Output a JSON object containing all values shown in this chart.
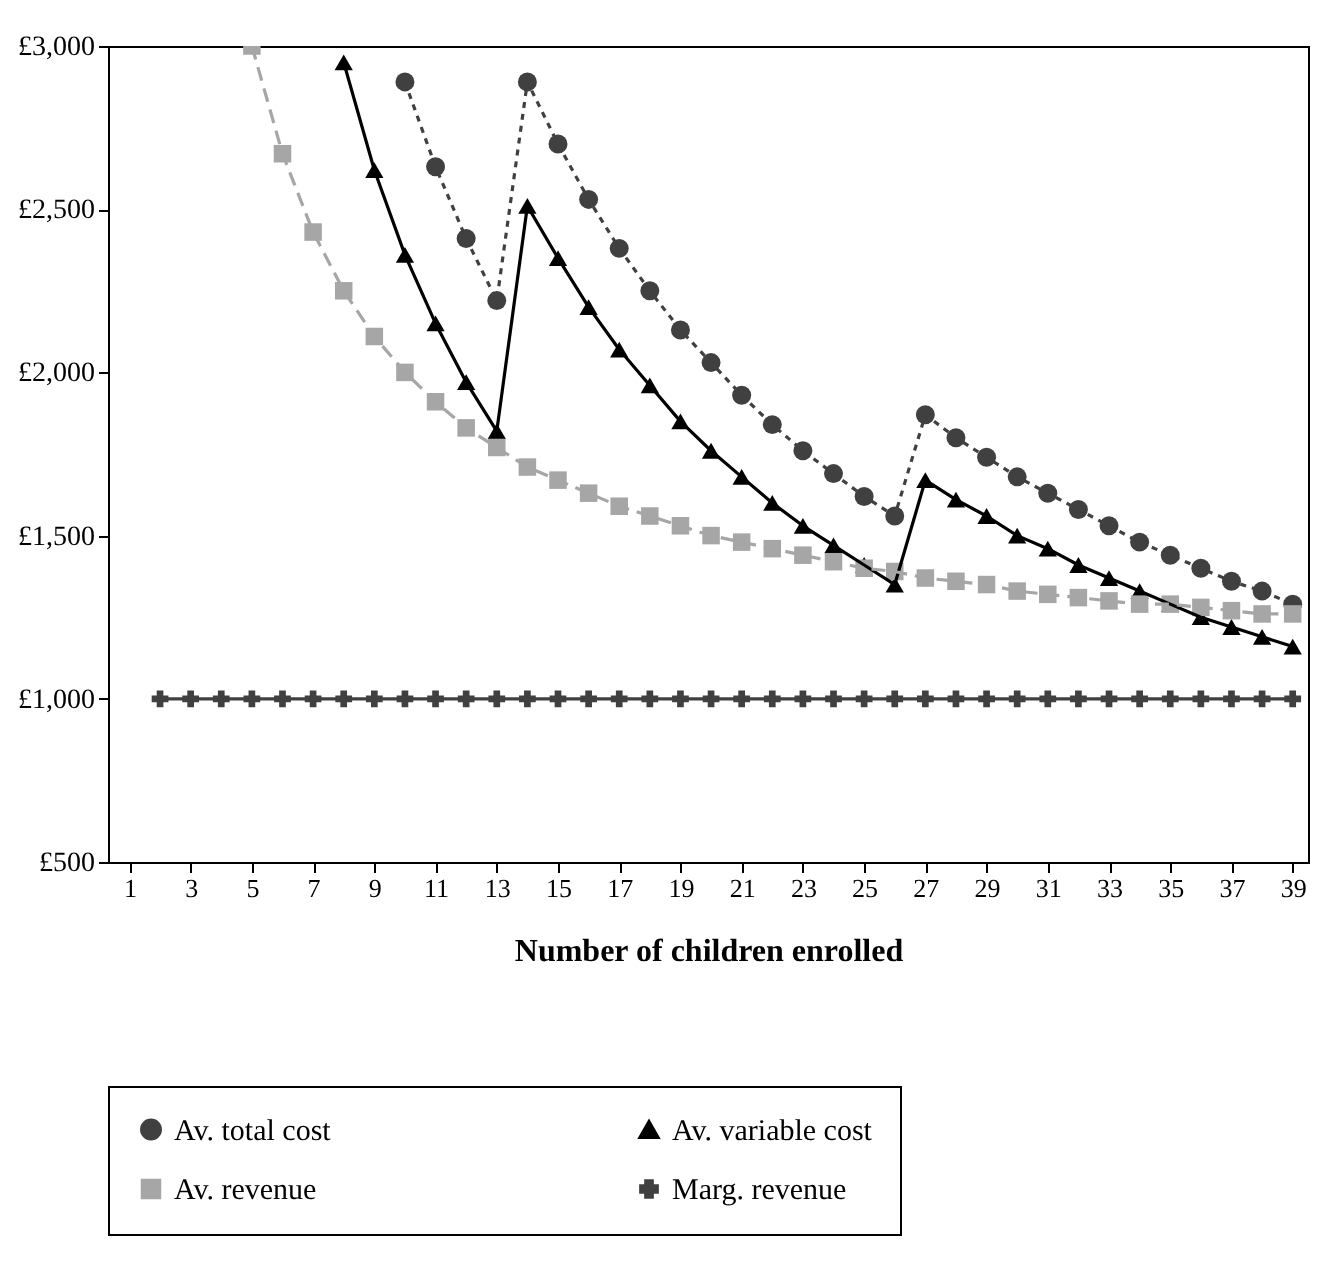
{
  "chart_data": {
    "type": "line",
    "xlabel": "Number of children enrolled",
    "x": [
      2,
      3,
      4,
      5,
      6,
      7,
      8,
      9,
      10,
      11,
      12,
      13,
      14,
      15,
      16,
      17,
      18,
      19,
      20,
      21,
      22,
      23,
      24,
      25,
      26,
      27,
      28,
      29,
      30,
      31,
      32,
      33,
      34,
      35,
      36,
      37,
      38,
      39
    ],
    "xlim": [
      0.3,
      39.5
    ],
    "xticks": [
      1,
      3,
      5,
      7,
      9,
      11,
      13,
      15,
      17,
      19,
      21,
      23,
      25,
      27,
      29,
      31,
      33,
      35,
      37,
      39
    ],
    "ylim": [
      500,
      3000
    ],
    "yticks": [
      {
        "value": 500,
        "label": "£500"
      },
      {
        "value": 1000,
        "label": "£1,000"
      },
      {
        "value": 1500,
        "label": "£1,500"
      },
      {
        "value": 2000,
        "label": "£2,000"
      },
      {
        "value": 2500,
        "label": "£2,500"
      },
      {
        "value": 3000,
        "label": "£3,000"
      }
    ],
    "grid": false,
    "legend": "bottom",
    "series": [
      {
        "name": "Av. total cost",
        "color": "#404040",
        "marker": "circle",
        "line_style": "dotted",
        "values": [
          null,
          null,
          null,
          null,
          null,
          null,
          null,
          null,
          2890,
          2630,
          2410,
          2220,
          2890,
          2700,
          2530,
          2380,
          2250,
          2130,
          2030,
          1930,
          1840,
          1760,
          1690,
          1620,
          1560,
          1870,
          1800,
          1740,
          1680,
          1630,
          1580,
          1530,
          1480,
          1440,
          1400,
          1360,
          1330,
          1290
        ]
      },
      {
        "name": "Av. variable cost",
        "color": "#000000",
        "marker": "triangle",
        "line_style": "solid",
        "values": [
          null,
          null,
          null,
          null,
          null,
          null,
          2950,
          2620,
          2360,
          2150,
          1970,
          1820,
          2510,
          2350,
          2200,
          2070,
          1960,
          1850,
          1760,
          1680,
          1600,
          1530,
          1470,
          1410,
          1350,
          1670,
          1610,
          1560,
          1500,
          1460,
          1410,
          1370,
          1330,
          1290,
          1250,
          1220,
          1190,
          1160
        ]
      },
      {
        "name": "Av. revenue",
        "color": "#a6a6a6",
        "marker": "square",
        "line_style": "dashed",
        "values": [
          null,
          null,
          null,
          3000,
          2670,
          2430,
          2250,
          2110,
          2000,
          1910,
          1830,
          1770,
          1710,
          1670,
          1630,
          1590,
          1560,
          1530,
          1500,
          1480,
          1460,
          1440,
          1420,
          1400,
          1390,
          1370,
          1360,
          1350,
          1330,
          1320,
          1310,
          1300,
          1290,
          1290,
          1280,
          1270,
          1260,
          1260
        ]
      },
      {
        "name": "Marg. revenue",
        "color": "#404040",
        "marker": "cross",
        "line_style": "solid",
        "values": [
          1000,
          1000,
          1000,
          1000,
          1000,
          1000,
          1000,
          1000,
          1000,
          1000,
          1000,
          1000,
          1000,
          1000,
          1000,
          1000,
          1000,
          1000,
          1000,
          1000,
          1000,
          1000,
          1000,
          1000,
          1000,
          1000,
          1000,
          1000,
          1000,
          1000,
          1000,
          1000,
          1000,
          1000,
          1000,
          1000,
          1000,
          1000
        ]
      }
    ]
  }
}
